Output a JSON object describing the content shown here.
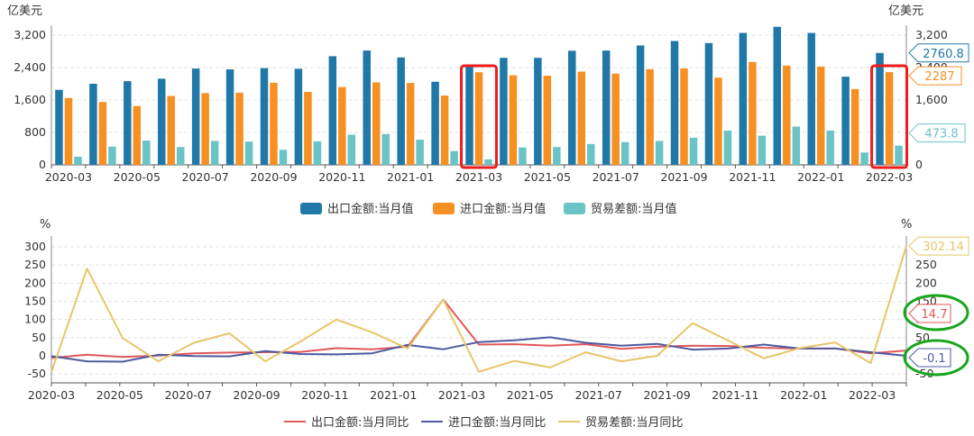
{
  "chart_data": [
    {
      "type": "bar",
      "unit_left": "亿美元",
      "unit_right": "亿美元",
      "x_labels": [
        "2020-03",
        "2020-05",
        "2020-07",
        "2020-09",
        "2020-11",
        "2021-01",
        "2021-03",
        "2021-05",
        "2021-07",
        "2021-09",
        "2021-11",
        "2022-01",
        "2022-03"
      ],
      "x": [
        "2020-03",
        "2020-04",
        "2020-05",
        "2020-06",
        "2020-07",
        "2020-08",
        "2020-09",
        "2020-10",
        "2020-11",
        "2020-12",
        "2021-01",
        "2021-02",
        "2021-03",
        "2021-04",
        "2021-05",
        "2021-06",
        "2021-07",
        "2021-08",
        "2021-09",
        "2021-10",
        "2021-11",
        "2021-12",
        "2022-01",
        "2022-02",
        "2022-03"
      ],
      "y_ticks": [
        "0",
        "800",
        "1,600",
        "2,400",
        "3,200"
      ],
      "y_right_ticks": [
        "0",
        "800",
        "1,600",
        "2,400",
        "3,200"
      ],
      "ylim": [
        0,
        3400
      ],
      "grid": true,
      "legend_position": "bottom",
      "series": [
        {
          "name": "出口金额:当月值",
          "color": "#2078a8",
          "values": [
            1850,
            2000,
            2065,
            2125,
            2375,
            2355,
            2385,
            2370,
            2680,
            2820,
            2650,
            2050,
            2420,
            2640,
            2640,
            2815,
            2820,
            2945,
            3055,
            3005,
            3255,
            3405,
            3255,
            2175,
            2760.8
          ]
        },
        {
          "name": "进口金额:当月值",
          "color": "#f79022",
          "values": [
            1650,
            1550,
            1450,
            1700,
            1770,
            1780,
            2025,
            1800,
            1920,
            2035,
            2020,
            1710,
            2285,
            2210,
            2200,
            2300,
            2250,
            2360,
            2380,
            2150,
            2535,
            2450,
            2425,
            1870,
            2287
          ]
        },
        {
          "name": "贸易差额:当月值",
          "color": "#6ac4c5",
          "values": [
            200,
            450,
            600,
            440,
            590,
            575,
            370,
            580,
            745,
            760,
            620,
            340,
            135,
            430,
            440,
            515,
            560,
            590,
            670,
            845,
            720,
            945,
            845,
            305,
            473.8
          ]
        }
      ],
      "annotations": [
        {
          "series": "出口金额:当月值",
          "label": "2760.8",
          "color": "#2078a8"
        },
        {
          "series": "进口金额:当月值",
          "label": "2287",
          "color": "#f79022"
        },
        {
          "series": "贸易差额:当月值",
          "label": "473.8",
          "color": "#6ac4c5"
        }
      ],
      "highlight_boxes": [
        "2021-03",
        "2022-03"
      ]
    },
    {
      "type": "line",
      "unit_left": "%",
      "unit_right": "%",
      "x_labels": [
        "2020-03",
        "2020-05",
        "2020-07",
        "2020-09",
        "2020-11",
        "2021-01",
        "2021-03",
        "2021-05",
        "2021-07",
        "2021-09",
        "2021-11",
        "2022-01",
        "2022-03"
      ],
      "x": [
        "2020-03",
        "2020-04",
        "2020-05",
        "2020-06",
        "2020-07",
        "2020-08",
        "2020-09",
        "2020-10",
        "2020-11",
        "2020-12",
        "2021-01",
        "2021-02",
        "2021-03",
        "2021-04",
        "2021-05",
        "2021-06",
        "2021-07",
        "2021-08",
        "2021-09",
        "2021-10",
        "2021-11",
        "2021-12",
        "2022-01",
        "2022-02",
        "2022-03"
      ],
      "y_ticks": [
        "-50",
        "0",
        "50",
        "100",
        "150",
        "200",
        "250",
        "300"
      ],
      "y_right_ticks": [
        "-50",
        "0",
        "50",
        "100",
        "150",
        "200",
        "250"
      ],
      "ylim": [
        -50,
        325
      ],
      "grid": true,
      "legend_position": "bottom",
      "series": [
        {
          "name": "出口金额:当月同比",
          "color": "#e0585a",
          "values": [
            -6,
            3,
            -3,
            0.4,
            7,
            9,
            10,
            11,
            21,
            18,
            25,
            155,
            31,
            32,
            28,
            32,
            19,
            25,
            28,
            27,
            22,
            20,
            20,
            7,
            14.7
          ]
        },
        {
          "name": "进口金额:当月同比",
          "color": "#4f5aa0",
          "values": [
            -1,
            -15,
            -16,
            3,
            -0.5,
            -1.5,
            13,
            5,
            4,
            7,
            30,
            18,
            38,
            43,
            51,
            36,
            28,
            33,
            17,
            20,
            31,
            20,
            20,
            10,
            -0.1
          ]
        },
        {
          "name": "贸易差额:当月同比",
          "color": "#e8c568",
          "values": [
            -45,
            240,
            49,
            -15,
            36,
            62,
            -15,
            40,
            100,
            65,
            20,
            155,
            -44,
            -14,
            -32,
            10,
            -15,
            0,
            90,
            42,
            -7,
            21,
            37,
            -20,
            302.14
          ]
        }
      ],
      "annotations": [
        {
          "series": "贸易差额:当月同比",
          "label": "302.14",
          "color": "#e8c568"
        },
        {
          "series": "出口金额:当月同比",
          "label": "14.7",
          "color": "#e0585a"
        },
        {
          "series": "进口金额:当月同比",
          "label": "-0.1",
          "color": "#4f5aa0"
        }
      ],
      "highlight_circles": [
        "出口金额:当月同比",
        "进口金额:当月同比"
      ]
    }
  ]
}
